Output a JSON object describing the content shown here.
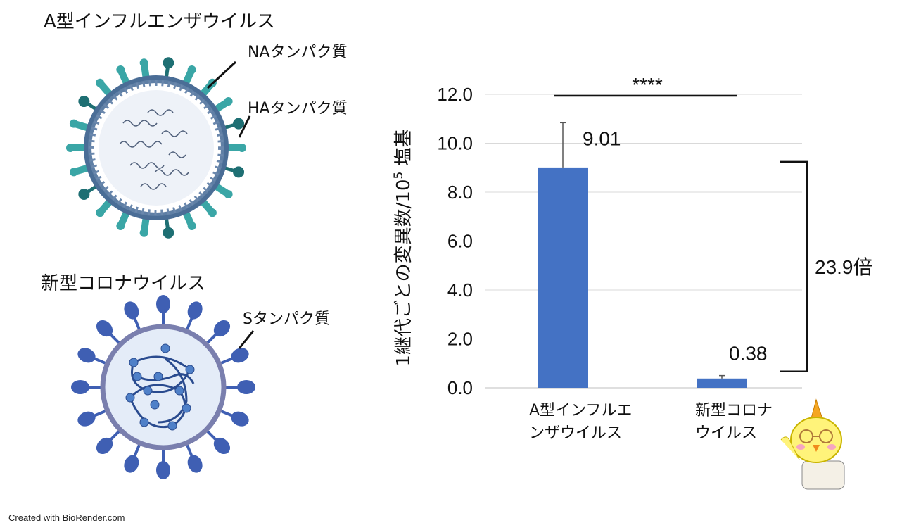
{
  "left_panel": {
    "flu_title": "A型インフルエンザウイルス",
    "na_label": "NAタンパク質",
    "ha_label": "HAタンパク質",
    "covid_title": "新型コロナウイルス",
    "s_label": "Sタンパク質",
    "credit": "Created with BioRender.com"
  },
  "colors": {
    "bar": "#4472c4",
    "ratio": "#e00000",
    "flu_teal": "#3aa6a6",
    "flu_dark": "#1e6f73",
    "covid_blue": "#3f5fb3",
    "covid_red": "#c0392b"
  },
  "chart_data": {
    "type": "bar",
    "ylabel_main": "1継代ごとの変異数/10",
    "ylabel_sup": "5",
    "ylabel_end": " 塩基",
    "ylim": [
      0,
      12
    ],
    "yticks": [
      "0.0",
      "2.0",
      "4.0",
      "6.0",
      "8.0",
      "10.0",
      "12.0"
    ],
    "grid": true,
    "categories": [
      {
        "line1": "A型インフルエ",
        "line2": "ンザウイルス"
      },
      {
        "line1": "新型コロナ",
        "line2": "ウイルス"
      }
    ],
    "values": [
      9.01,
      0.38
    ],
    "value_labels": [
      "9.01",
      "0.38"
    ],
    "errors": [
      1.83,
      0.12
    ],
    "significance": "****",
    "ratio_label": "23.9倍"
  }
}
